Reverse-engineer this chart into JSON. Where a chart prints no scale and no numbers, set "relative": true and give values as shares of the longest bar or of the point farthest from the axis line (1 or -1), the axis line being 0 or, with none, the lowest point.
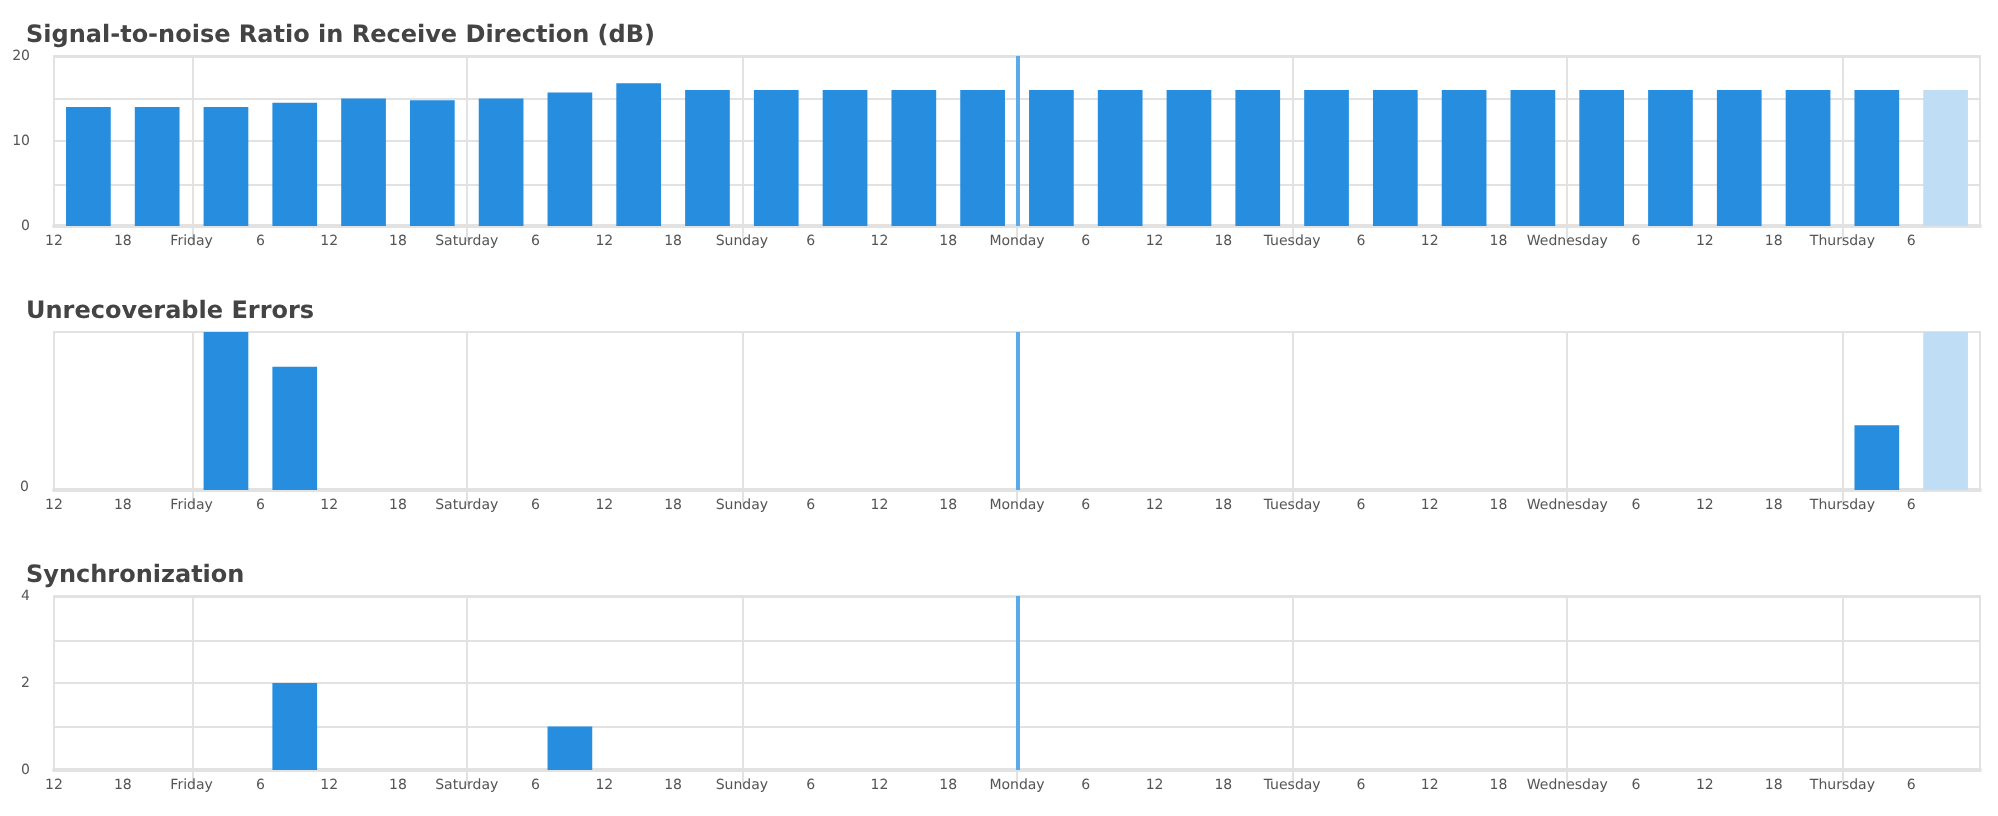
{
  "chart_data": [
    {
      "type": "bar",
      "title": "Signal-to-noise Ratio in Receive Direction (dB)",
      "x": [
        "--01-02T15:00",
        "--01-02T21:00",
        "--01-03T03:00",
        "--01-03T09:00",
        "--01-03T15:00",
        "--01-03T21:00",
        "--01-04T03:00",
        "--01-04T09:00",
        "--01-04T15:00",
        "--01-04T21:00",
        "--01-05T03:00",
        "--01-05T09:00",
        "--01-05T15:00",
        "--01-05T21:00",
        "--01-06T03:00",
        "--01-06T09:00",
        "--01-06T15:00",
        "--01-06T21:00",
        "--01-07T03:00",
        "--01-07T09:00",
        "--01-07T15:00",
        "--01-07T21:00",
        "--01-08T03:00",
        "--01-08T09:00",
        "--01-08T15:00",
        "--01-08T21:00",
        "--01-09T03:00",
        "--01-09T09:00"
      ],
      "values": [
        14,
        14,
        14,
        14.5,
        15,
        14.8,
        15,
        15.7,
        16.8,
        16,
        16,
        16,
        16,
        16,
        16,
        16,
        16,
        16,
        16,
        16,
        16,
        16,
        16,
        16,
        16,
        16,
        16,
        16
      ],
      "colors": [
        "#268ddf",
        "#268ddf",
        "#268ddf",
        "#268ddf",
        "#268ddf",
        "#268ddf",
        "#268ddf",
        "#268ddf",
        "#268ddf",
        "#268ddf",
        "#268ddf",
        "#268ddf",
        "#268ddf",
        "#268ddf",
        "#268ddf",
        "#268ddf",
        "#268ddf",
        "#268ddf",
        "#268ddf",
        "#268ddf",
        "#268ddf",
        "#268ddf",
        "#268ddf",
        "#268ddf",
        "#268ddf",
        "#268ddf",
        "#268ddf",
        "#bfdef5"
      ],
      "xlim": [
        "--01-02T12:00",
        "--01-09T12:00"
      ],
      "xticks": [
        {
          "value": "--01-02T12:00",
          "label": "12"
        },
        {
          "value": "--01-02T18:00",
          "label": "18"
        },
        {
          "value": "--01-03T00:00",
          "label": "Friday"
        },
        {
          "value": "--01-03T06:00",
          "label": "6"
        },
        {
          "value": "--01-03T12:00",
          "label": "12"
        },
        {
          "value": "--01-03T18:00",
          "label": "18"
        },
        {
          "value": "--01-04T00:00",
          "label": "Saturday"
        },
        {
          "value": "--01-04T06:00",
          "label": "6"
        },
        {
          "value": "--01-04T12:00",
          "label": "12"
        },
        {
          "value": "--01-04T18:00",
          "label": "18"
        },
        {
          "value": "--01-05T00:00",
          "label": "Sunday"
        },
        {
          "value": "--01-05T06:00",
          "label": "6"
        },
        {
          "value": "--01-05T12:00",
          "label": "12"
        },
        {
          "value": "--01-05T18:00",
          "label": "18"
        },
        {
          "value": "--01-06T00:00",
          "label": "Monday"
        },
        {
          "value": "--01-06T06:00",
          "label": "6"
        },
        {
          "value": "--01-06T12:00",
          "label": "12"
        },
        {
          "value": "--01-06T18:00",
          "label": "18"
        },
        {
          "value": "--01-07T00:00",
          "label": "Tuesday"
        },
        {
          "value": "--01-07T06:00",
          "label": "6"
        },
        {
          "value": "--01-07T12:00",
          "label": "12"
        },
        {
          "value": "--01-07T18:00",
          "label": "18"
        },
        {
          "value": "--01-08T00:00",
          "label": "Wednesday"
        },
        {
          "value": "--01-08T06:00",
          "label": "6"
        },
        {
          "value": "--01-08T12:00",
          "label": "12"
        },
        {
          "value": "--01-08T18:00",
          "label": "18"
        },
        {
          "value": "--01-09T00:00",
          "label": "Thursday"
        },
        {
          "value": "--01-09T06:00",
          "label": "6"
        }
      ],
      "ylim": [
        0,
        20
      ],
      "yticks": [
        0,
        {
          "value": 5,
          "label": null
        },
        10,
        {
          "value": 15,
          "label": null
        },
        20
      ],
      "grid": true,
      "ref_lines": [
        {
          "axis": "x",
          "value": "--01-06T00:00",
          "color": "#5aabea"
        }
      ]
    },
    {
      "type": "bar",
      "title": "Unrecoverable Errors",
      "relative": true,
      "x": [
        "--01-02T15:00",
        "--01-02T21:00",
        "--01-03T03:00",
        "--01-03T09:00",
        "--01-03T15:00",
        "--01-03T21:00",
        "--01-04T03:00",
        "--01-04T09:00",
        "--01-04T15:00",
        "--01-04T21:00",
        "--01-05T03:00",
        "--01-05T09:00",
        "--01-05T15:00",
        "--01-05T21:00",
        "--01-06T03:00",
        "--01-06T09:00",
        "--01-06T15:00",
        "--01-06T21:00",
        "--01-07T03:00",
        "--01-07T09:00",
        "--01-07T15:00",
        "--01-07T21:00",
        "--01-08T03:00",
        "--01-08T09:00",
        "--01-08T15:00",
        "--01-08T21:00",
        "--01-09T03:00",
        "--01-09T09:00"
      ],
      "values": [
        0,
        0,
        1,
        0.78,
        0,
        0,
        0,
        0,
        0,
        null,
        0,
        0,
        0,
        0,
        0,
        null,
        0,
        0,
        0,
        0,
        0,
        0,
        0,
        0,
        null,
        0,
        0.41,
        1
      ],
      "colors": [
        "#268ddf",
        "#268ddf",
        "#268ddf",
        "#268ddf",
        "#268ddf",
        "#268ddf",
        "#268ddf",
        "#268ddf",
        "#268ddf",
        "#bfdef5",
        "#268ddf",
        "#268ddf",
        "#268ddf",
        "#268ddf",
        "#268ddf",
        "#bfdef5",
        "#268ddf",
        "#268ddf",
        "#268ddf",
        "#268ddf",
        "#268ddf",
        "#268ddf",
        "#268ddf",
        "#268ddf",
        "#bfdef5",
        "#268ddf",
        "#268ddf",
        "#bfdef5"
      ],
      "xlim": [
        "--01-02T12:00",
        "--01-09T12:00"
      ],
      "xticks": [
        {
          "value": "--01-02T12:00",
          "label": "12"
        },
        {
          "value": "--01-02T18:00",
          "label": "18"
        },
        {
          "value": "--01-03T00:00",
          "label": "Friday"
        },
        {
          "value": "--01-03T06:00",
          "label": "6"
        },
        {
          "value": "--01-03T12:00",
          "label": "12"
        },
        {
          "value": "--01-03T18:00",
          "label": "18"
        },
        {
          "value": "--01-04T00:00",
          "label": "Saturday"
        },
        {
          "value": "--01-04T06:00",
          "label": "6"
        },
        {
          "value": "--01-04T12:00",
          "label": "12"
        },
        {
          "value": "--01-04T18:00",
          "label": "18"
        },
        {
          "value": "--01-05T00:00",
          "label": "Sunday"
        },
        {
          "value": "--01-05T06:00",
          "label": "6"
        },
        {
          "value": "--01-05T12:00",
          "label": "12"
        },
        {
          "value": "--01-05T18:00",
          "label": "18"
        },
        {
          "value": "--01-06T00:00",
          "label": "Monday"
        },
        {
          "value": "--01-06T06:00",
          "label": "6"
        },
        {
          "value": "--01-06T12:00",
          "label": "12"
        },
        {
          "value": "--01-06T18:00",
          "label": "18"
        },
        {
          "value": "--01-07T00:00",
          "label": "Tuesday"
        },
        {
          "value": "--01-07T06:00",
          "label": "6"
        },
        {
          "value": "--01-07T12:00",
          "label": "12"
        },
        {
          "value": "--01-07T18:00",
          "label": "18"
        },
        {
          "value": "--01-08T00:00",
          "label": "Wednesday"
        },
        {
          "value": "--01-08T06:00",
          "label": "6"
        },
        {
          "value": "--01-08T12:00",
          "label": "12"
        },
        {
          "value": "--01-08T18:00",
          "label": "18"
        },
        {
          "value": "--01-09T00:00",
          "label": "Thursday"
        },
        {
          "value": "--01-09T06:00",
          "label": "6"
        }
      ],
      "grid": "x",
      "annotations": [
        "0"
      ],
      "ref_lines": [
        {
          "axis": "x",
          "value": "--01-06T00:00",
          "color": "#5aabea"
        }
      ]
    },
    {
      "type": "bar",
      "title": "Synchronization",
      "x": [
        "--01-02T15:00",
        "--01-02T21:00",
        "--01-03T03:00",
        "--01-03T09:00",
        "--01-03T15:00",
        "--01-03T21:00",
        "--01-04T03:00",
        "--01-04T09:00",
        "--01-04T15:00",
        "--01-04T21:00",
        "--01-05T03:00",
        "--01-05T09:00",
        "--01-05T15:00",
        "--01-05T21:00",
        "--01-06T03:00",
        "--01-06T09:00",
        "--01-06T15:00",
        "--01-06T21:00",
        "--01-07T03:00",
        "--01-07T09:00",
        "--01-07T15:00",
        "--01-07T21:00",
        "--01-08T03:00",
        "--01-08T09:00",
        "--01-08T15:00",
        "--01-08T21:00",
        "--01-09T03:00",
        "--01-09T09:00"
      ],
      "values": [
        0,
        0,
        0,
        2,
        0,
        0,
        0,
        1,
        0,
        0,
        0,
        0,
        0,
        0,
        0,
        0,
        0,
        0,
        0,
        0,
        0,
        0,
        0,
        0,
        0,
        0,
        0,
        0
      ],
      "color": "#268ddf",
      "xlim": [
        "--01-02T12:00",
        "--01-09T12:00"
      ],
      "xticks": [
        {
          "value": "--01-02T12:00",
          "label": "12"
        },
        {
          "value": "--01-02T18:00",
          "label": "18"
        },
        {
          "value": "--01-03T00:00",
          "label": "Friday"
        },
        {
          "value": "--01-03T06:00",
          "label": "6"
        },
        {
          "value": "--01-03T12:00",
          "label": "12"
        },
        {
          "value": "--01-03T18:00",
          "label": "18"
        },
        {
          "value": "--01-04T00:00",
          "label": "Saturday"
        },
        {
          "value": "--01-04T06:00",
          "label": "6"
        },
        {
          "value": "--01-04T12:00",
          "label": "12"
        },
        {
          "value": "--01-04T18:00",
          "label": "18"
        },
        {
          "value": "--01-05T00:00",
          "label": "Sunday"
        },
        {
          "value": "--01-05T06:00",
          "label": "6"
        },
        {
          "value": "--01-05T12:00",
          "label": "12"
        },
        {
          "value": "--01-05T18:00",
          "label": "18"
        },
        {
          "value": "--01-06T00:00",
          "label": "Monday"
        },
        {
          "value": "--01-06T06:00",
          "label": "6"
        },
        {
          "value": "--01-06T12:00",
          "label": "12"
        },
        {
          "value": "--01-06T18:00",
          "label": "18"
        },
        {
          "value": "--01-07T00:00",
          "label": "Tuesday"
        },
        {
          "value": "--01-07T06:00",
          "label": "6"
        },
        {
          "value": "--01-07T12:00",
          "label": "12"
        },
        {
          "value": "--01-07T18:00",
          "label": "18"
        },
        {
          "value": "--01-08T00:00",
          "label": "Wednesday"
        },
        {
          "value": "--01-08T06:00",
          "label": "6"
        },
        {
          "value": "--01-08T12:00",
          "label": "12"
        },
        {
          "value": "--01-08T18:00",
          "label": "18"
        },
        {
          "value": "--01-09T00:00",
          "label": "Thursday"
        },
        {
          "value": "--01-09T06:00",
          "label": "6"
        }
      ],
      "ylim": [
        0,
        4
      ],
      "yticks": [
        0,
        {
          "value": 1,
          "label": null
        },
        2,
        {
          "value": 3,
          "label": null
        },
        4
      ],
      "grid": true,
      "ref_lines": [
        {
          "axis": "x",
          "value": "--01-06T00:00",
          "color": "#5aabea"
        }
      ]
    }
  ]
}
